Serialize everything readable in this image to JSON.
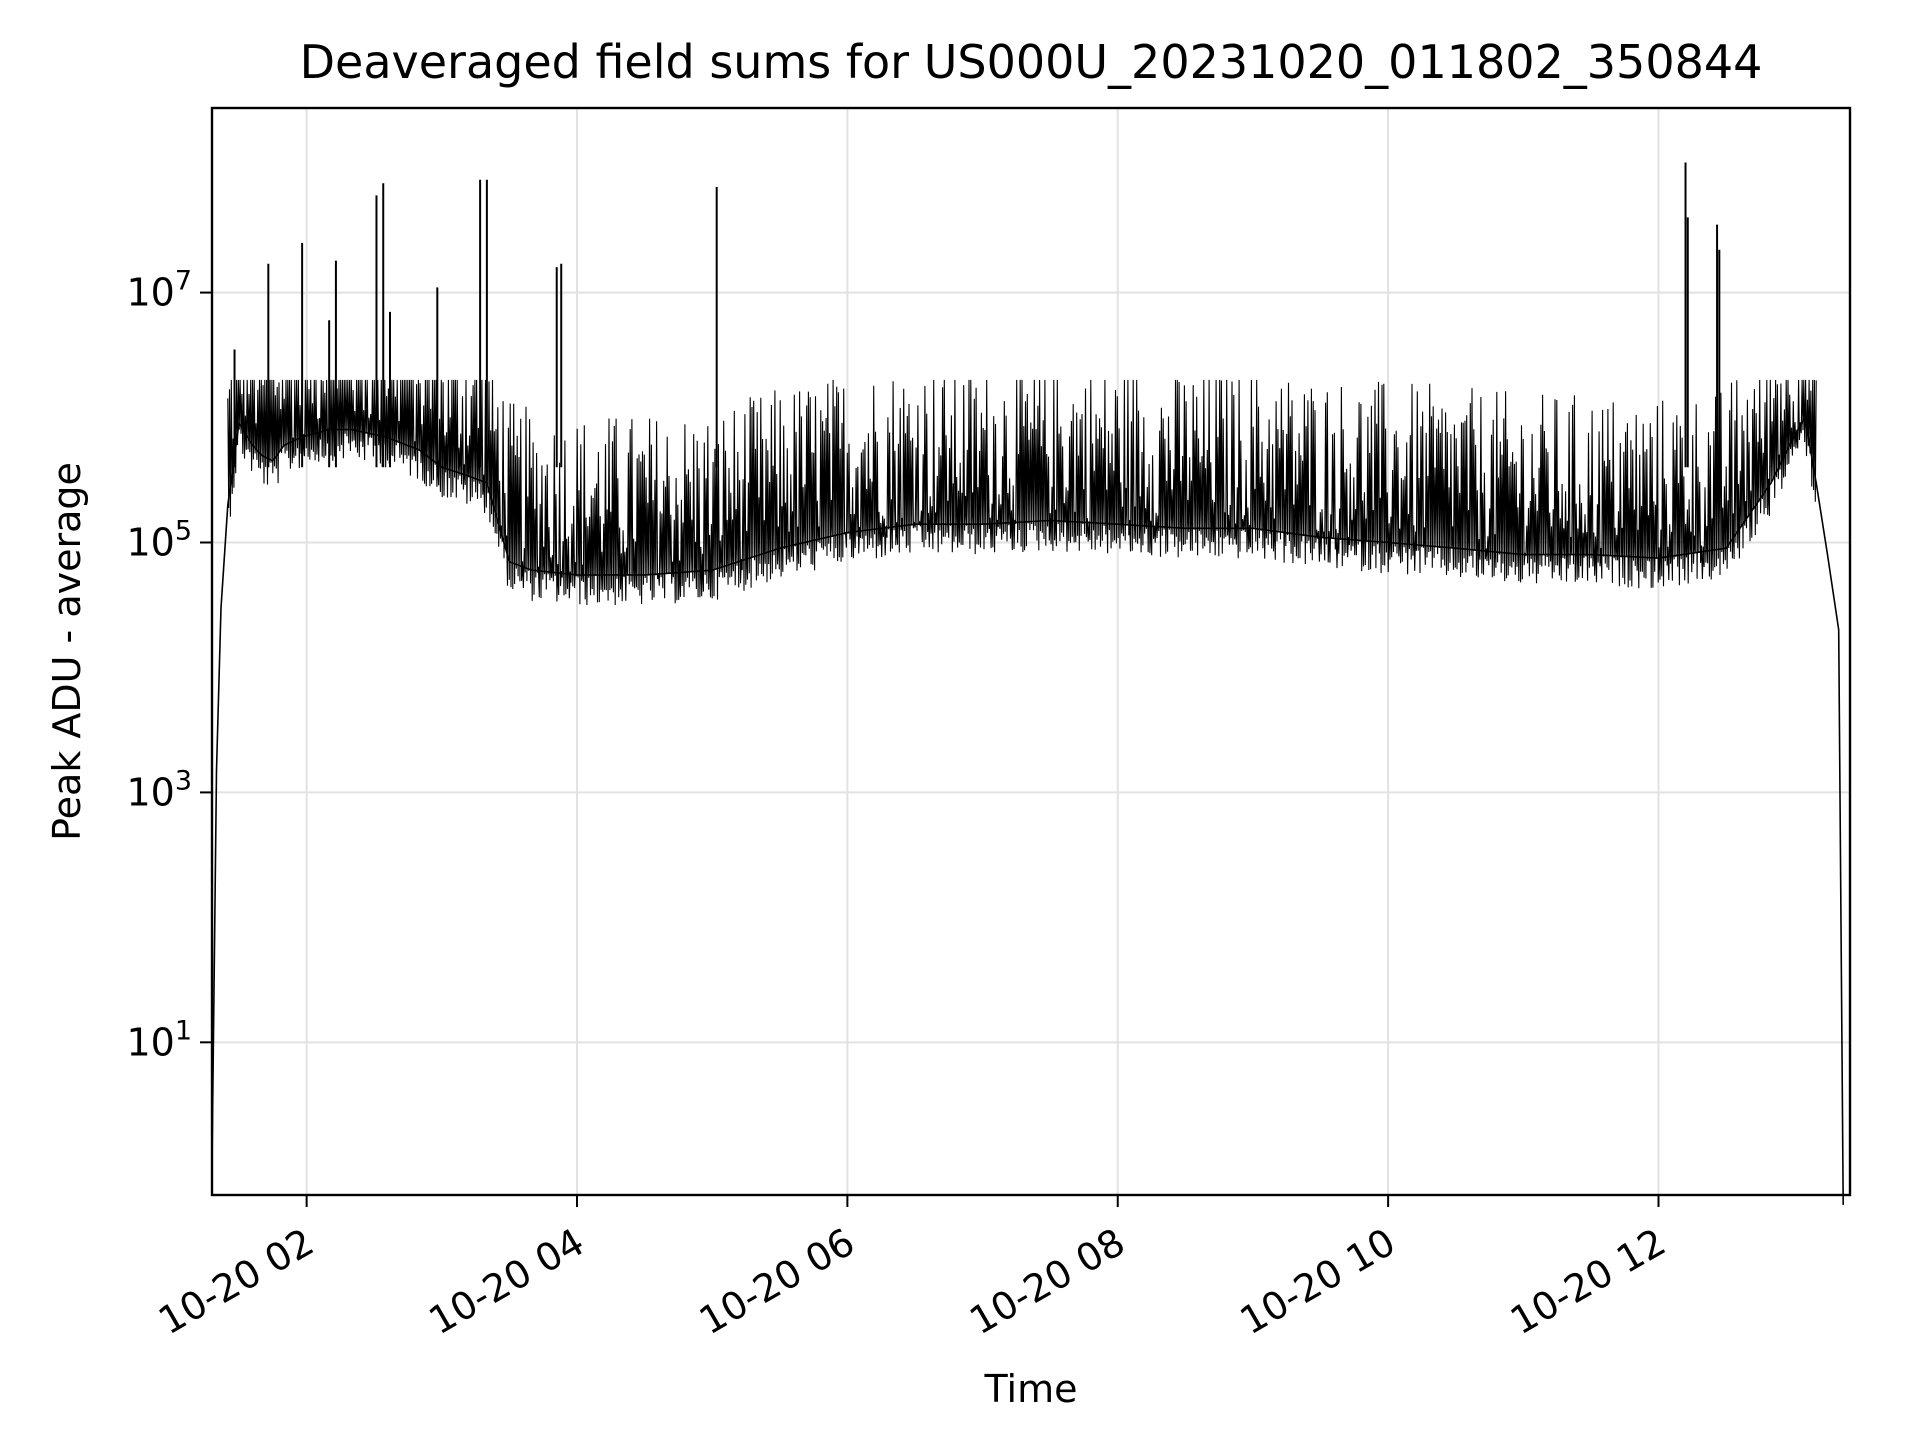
{
  "chart_data": {
    "type": "line",
    "title": "Deaveraged field sums for US000U_20231020_011802_350844",
    "xlabel": "Time",
    "ylabel": "Peak ADU - average",
    "yscale": "log",
    "grid": true,
    "xlim": [
      "2023-10-20 01:18",
      "2023-10-20 13:25"
    ],
    "ylim": [
      0.6,
      300000000
    ],
    "x_ticks": [
      {
        "value": "2023-10-20 02:00",
        "label": "10-20 02"
      },
      {
        "value": "2023-10-20 04:00",
        "label": "10-20 04"
      },
      {
        "value": "2023-10-20 06:00",
        "label": "10-20 06"
      },
      {
        "value": "2023-10-20 08:00",
        "label": "10-20 08"
      },
      {
        "value": "2023-10-20 10:00",
        "label": "10-20 10"
      },
      {
        "value": "2023-10-20 12:00",
        "label": "10-20 12"
      }
    ],
    "y_ticks": [
      {
        "value": 10,
        "base": "10",
        "exp": "1"
      },
      {
        "value": 1000,
        "base": "10",
        "exp": "3"
      },
      {
        "value": 100000,
        "base": "10",
        "exp": "5"
      },
      {
        "value": 10000000,
        "base": "10",
        "exp": "7"
      }
    ],
    "series": [
      {
        "color": "#000000",
        "x": [
          "2023-10-20 01:18",
          "2023-10-20 01:20",
          "2023-10-20 01:22",
          "2023-10-20 01:25",
          "2023-10-20 01:30",
          "2023-10-20 01:36",
          "2023-10-20 01:40",
          "2023-10-20 01:45",
          "2023-10-20 01:50",
          "2023-10-20 01:58",
          "2023-10-20 02:10",
          "2023-10-20 02:20",
          "2023-10-20 02:35",
          "2023-10-20 02:50",
          "2023-10-20 03:00",
          "2023-10-20 03:10",
          "2023-10-20 03:20",
          "2023-10-20 03:30",
          "2023-10-20 03:40",
          "2023-10-20 04:00",
          "2023-10-20 04:30",
          "2023-10-20 05:00",
          "2023-10-20 05:30",
          "2023-10-20 06:00",
          "2023-10-20 06:30",
          "2023-10-20 07:00",
          "2023-10-20 07:30",
          "2023-10-20 08:00",
          "2023-10-20 08:30",
          "2023-10-20 09:00",
          "2023-10-20 09:30",
          "2023-10-20 10:00",
          "2023-10-20 10:30",
          "2023-10-20 11:00",
          "2023-10-20 11:30",
          "2023-10-20 12:00",
          "2023-10-20 12:30",
          "2023-10-20 12:50",
          "2023-10-20 13:00",
          "2023-10-20 13:05",
          "2023-10-20 13:10",
          "2023-10-20 13:15",
          "2023-10-20 13:20",
          "2023-10-20 13:22"
        ],
        "y": [
          1,
          1500,
          30000,
          200000,
          900000,
          600000,
          500000,
          450000,
          600000,
          700000,
          800000,
          800000,
          700000,
          550000,
          400000,
          350000,
          300000,
          70000,
          60000,
          55000,
          55000,
          60000,
          90000,
          120000,
          140000,
          140000,
          150000,
          140000,
          130000,
          130000,
          110000,
          100000,
          90000,
          80000,
          80000,
          75000,
          90000,
          300000,
          700000,
          1000000,
          300000,
          80000,
          20000,
          0.5
        ]
      }
    ],
    "spikes": [
      {
        "x": "2023-10-20 01:28",
        "y": 3500000
      },
      {
        "x": "2023-10-20 01:43",
        "y": 17000000
      },
      {
        "x": "2023-10-20 01:58",
        "y": 25000000
      },
      {
        "x": "2023-10-20 02:10",
        "y": 6000000
      },
      {
        "x": "2023-10-20 02:13",
        "y": 18000000
      },
      {
        "x": "2023-10-20 02:31",
        "y": 60000000
      },
      {
        "x": "2023-10-20 02:34",
        "y": 75000000
      },
      {
        "x": "2023-10-20 02:37",
        "y": 7000000
      },
      {
        "x": "2023-10-20 02:58",
        "y": 11000000
      },
      {
        "x": "2023-10-20 03:17",
        "y": 80000000
      },
      {
        "x": "2023-10-20 03:20",
        "y": 80000000
      },
      {
        "x": "2023-10-20 03:51",
        "y": 16000000
      },
      {
        "x": "2023-10-20 03:53",
        "y": 17000000
      },
      {
        "x": "2023-10-20 05:02",
        "y": 70000000
      },
      {
        "x": "2023-10-20 12:12",
        "y": 110000000
      },
      {
        "x": "2023-10-20 12:13",
        "y": 40000000
      },
      {
        "x": "2023-10-20 12:26",
        "y": 35000000
      },
      {
        "x": "2023-10-20 12:27",
        "y": 22000000
      }
    ]
  }
}
